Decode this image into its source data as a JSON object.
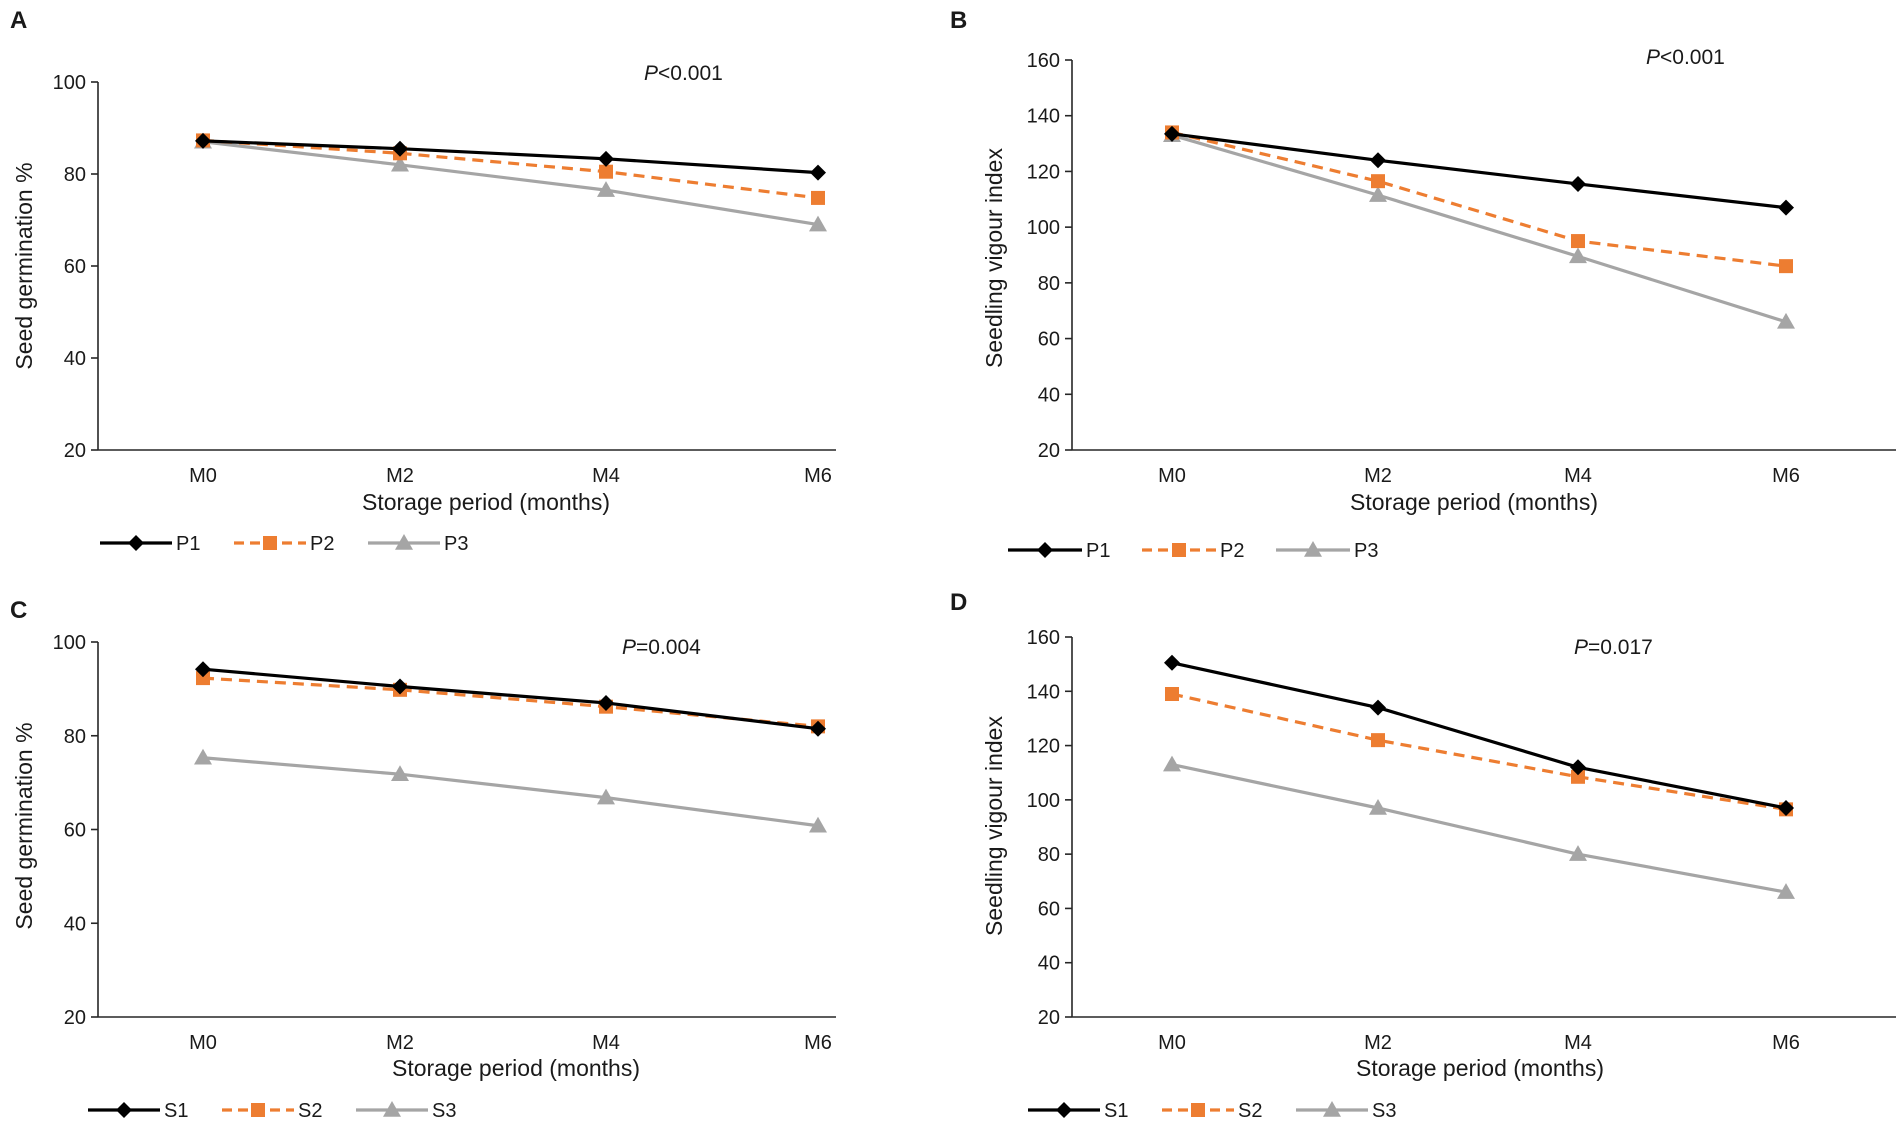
{
  "figure": {
    "background": "#ffffff"
  },
  "colors": {
    "series1": "#000000",
    "series2": "#ed7d31",
    "series3": "#a5a5a5",
    "axis": "#262626"
  },
  "chart_data": [
    {
      "panel": "A",
      "type": "line",
      "pvalue_prefix": "P",
      "pvalue_rest": "<0.001",
      "xlabel": "Storage period (months)",
      "ylabel": "Seed germination %",
      "categories": [
        "M0",
        "M2",
        "M4",
        "M6"
      ],
      "ylim": [
        20,
        100
      ],
      "yticks": [
        20,
        40,
        60,
        80,
        100
      ],
      "grid": false,
      "legend_position": "bottom-left",
      "series": [
        {
          "name": "P1",
          "marker": "diamond",
          "dash": "solid",
          "color": "#000000",
          "values": [
            87.2,
            85.5,
            83.3,
            80.3
          ]
        },
        {
          "name": "P2",
          "marker": "square",
          "dash": "dashed",
          "color": "#ed7d31",
          "values": [
            87.3,
            84.5,
            80.5,
            74.8
          ]
        },
        {
          "name": "P3",
          "marker": "triangle",
          "dash": "solid",
          "color": "#a5a5a5",
          "values": [
            87.0,
            82.0,
            76.5,
            69.0
          ]
        }
      ]
    },
    {
      "panel": "B",
      "type": "line",
      "pvalue_prefix": "P",
      "pvalue_rest": "<0.001",
      "xlabel": "Storage period (months)",
      "ylabel": "Seedling  vigour  index",
      "categories": [
        "M0",
        "M2",
        "M4",
        "M6"
      ],
      "ylim": [
        20,
        160
      ],
      "yticks": [
        20,
        40,
        60,
        80,
        100,
        120,
        140,
        160
      ],
      "grid": false,
      "legend_position": "bottom-left",
      "series": [
        {
          "name": "P1",
          "marker": "diamond",
          "dash": "solid",
          "color": "#000000",
          "values": [
            133.5,
            124.0,
            115.5,
            107.0
          ]
        },
        {
          "name": "P2",
          "marker": "square",
          "dash": "dashed",
          "color": "#ed7d31",
          "values": [
            134.0,
            116.5,
            95.0,
            86.0
          ]
        },
        {
          "name": "P3",
          "marker": "triangle",
          "dash": "solid",
          "color": "#a5a5a5",
          "values": [
            133.0,
            111.5,
            89.5,
            66.0
          ]
        }
      ]
    },
    {
      "panel": "C",
      "type": "line",
      "pvalue_prefix": "P",
      "pvalue_rest": "=0.004",
      "xlabel": "Storage period (months)",
      "ylabel": "Seed germination %",
      "categories": [
        "M0",
        "M2",
        "M4",
        "M6"
      ],
      "ylim": [
        20,
        100
      ],
      "yticks": [
        20,
        40,
        60,
        80,
        100
      ],
      "grid": false,
      "legend_position": "bottom-left",
      "series": [
        {
          "name": "S1",
          "marker": "diamond",
          "dash": "solid",
          "color": "#000000",
          "values": [
            94.2,
            90.5,
            87.0,
            81.5
          ]
        },
        {
          "name": "S2",
          "marker": "square",
          "dash": "dashed",
          "color": "#ed7d31",
          "values": [
            92.3,
            89.8,
            86.2,
            82.0
          ]
        },
        {
          "name": "S3",
          "marker": "triangle",
          "dash": "solid",
          "color": "#a5a5a5",
          "values": [
            75.3,
            71.8,
            66.8,
            60.8
          ]
        }
      ]
    },
    {
      "panel": "D",
      "type": "line",
      "pvalue_prefix": "P",
      "pvalue_rest": "=0.017",
      "xlabel": "Storage period (months)",
      "ylabel": "Seedling  vigour  index",
      "categories": [
        "M0",
        "M2",
        "M4",
        "M6"
      ],
      "ylim": [
        20,
        160
      ],
      "yticks": [
        20,
        40,
        60,
        80,
        100,
        120,
        140,
        160
      ],
      "grid": false,
      "legend_position": "bottom-left",
      "series": [
        {
          "name": "S1",
          "marker": "diamond",
          "dash": "solid",
          "color": "#000000",
          "values": [
            150.5,
            134.0,
            112.0,
            97.0
          ]
        },
        {
          "name": "S2",
          "marker": "square",
          "dash": "dashed",
          "color": "#ed7d31",
          "values": [
            139.0,
            122.0,
            108.5,
            96.5
          ]
        },
        {
          "name": "S3",
          "marker": "triangle",
          "dash": "solid",
          "color": "#a5a5a5",
          "values": [
            113.0,
            97.0,
            80.0,
            66.0
          ]
        }
      ]
    }
  ]
}
